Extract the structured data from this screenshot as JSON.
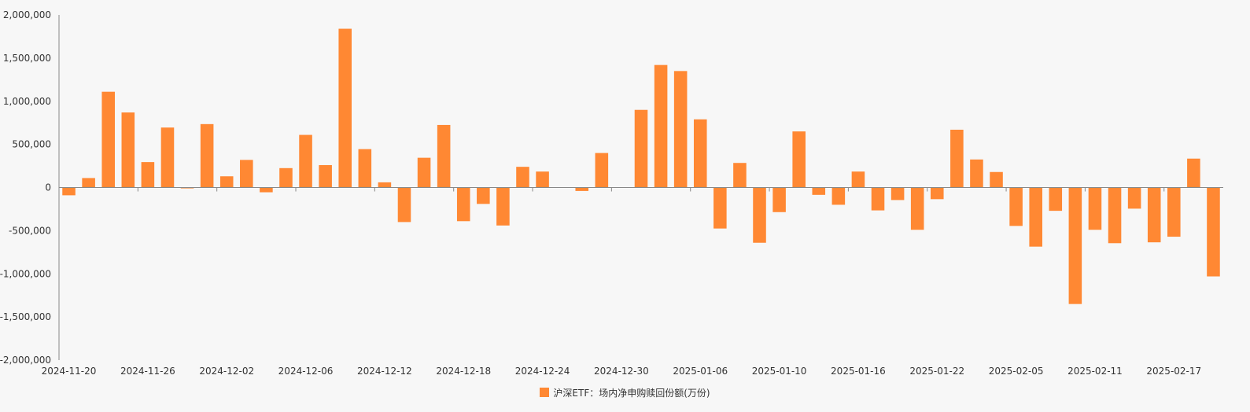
{
  "colors": {
    "bar": "#ff8833",
    "axis": "#888888",
    "text": "#333333",
    "background": "#f7f7f7"
  },
  "chart_data": {
    "type": "bar",
    "title": "",
    "xlabel": "",
    "ylabel": "",
    "ylim": [
      -2000000,
      2000000
    ],
    "yticks": [
      2000000,
      1500000,
      1000000,
      500000,
      0,
      -500000,
      -1000000,
      -1500000,
      -2000000
    ],
    "ytick_labels": [
      "2,000,000",
      "1,500,000",
      "1,000,000",
      "500,000",
      "0",
      "-500,000",
      "-1,000,000",
      "-1,500,000",
      "-2,000,000"
    ],
    "xtick_labels": [
      "2024-11-20",
      "2024-11-26",
      "2024-12-02",
      "2024-12-06",
      "2024-12-12",
      "2024-12-18",
      "2024-12-24",
      "2024-12-30",
      "2025-01-06",
      "2025-01-10",
      "2025-01-16",
      "2025-01-22",
      "2025-02-05",
      "2025-02-11",
      "2025-02-17"
    ],
    "xtick_every": 4,
    "grid": false,
    "legend_position": "bottom-center",
    "series": [
      {
        "name": "沪深ETF：场内净申购赎回份额(万份)",
        "values": [
          -90000,
          110000,
          1110000,
          870000,
          295000,
          695000,
          -10000,
          735000,
          130000,
          320000,
          -55000,
          225000,
          610000,
          260000,
          1840000,
          445000,
          60000,
          -400000,
          345000,
          725000,
          -390000,
          -190000,
          -440000,
          240000,
          185000,
          0,
          -40000,
          400000,
          0,
          900000,
          1420000,
          1350000,
          790000,
          -475000,
          285000,
          -640000,
          -285000,
          650000,
          -85000,
          -200000,
          185000,
          -265000,
          -145000,
          -490000,
          -135000,
          670000,
          325000,
          180000,
          -445000,
          -685000,
          -270000,
          -1350000,
          -490000,
          -645000,
          -245000,
          -635000,
          -570000,
          335000,
          -1030000
        ]
      }
    ]
  }
}
